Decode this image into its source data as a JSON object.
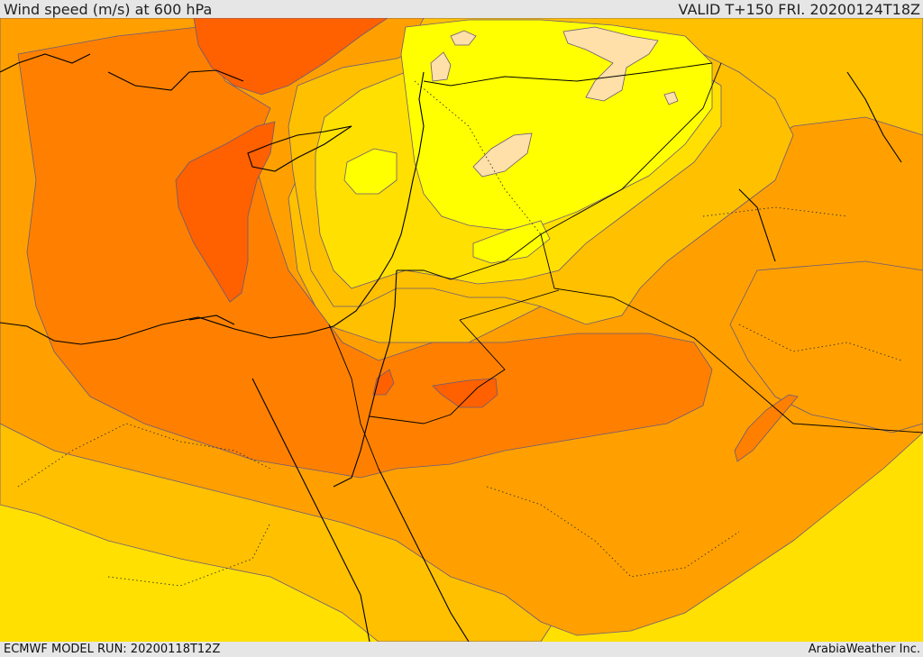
{
  "header": {
    "title": "Wind speed (m/s) at 600 hPa",
    "valid": "VALID T+150 FRI. 20200124T18Z"
  },
  "footer": {
    "model_run": "ECMWF MODEL RUN: 20200118T12Z",
    "credit": "ArabiaWeather Inc."
  },
  "map": {
    "colors": {
      "band_light_yellow": "#ffff00",
      "band_peach": "#ffe0a8",
      "band_gold": "#ffe000",
      "band_amber": "#ffc000",
      "band_orange": "#ffa000",
      "band_dark_orange": "#ff8000",
      "band_red_orange": "#ff6000",
      "contour_line": "#6a5a7a",
      "coastline": "#000000"
    }
  }
}
